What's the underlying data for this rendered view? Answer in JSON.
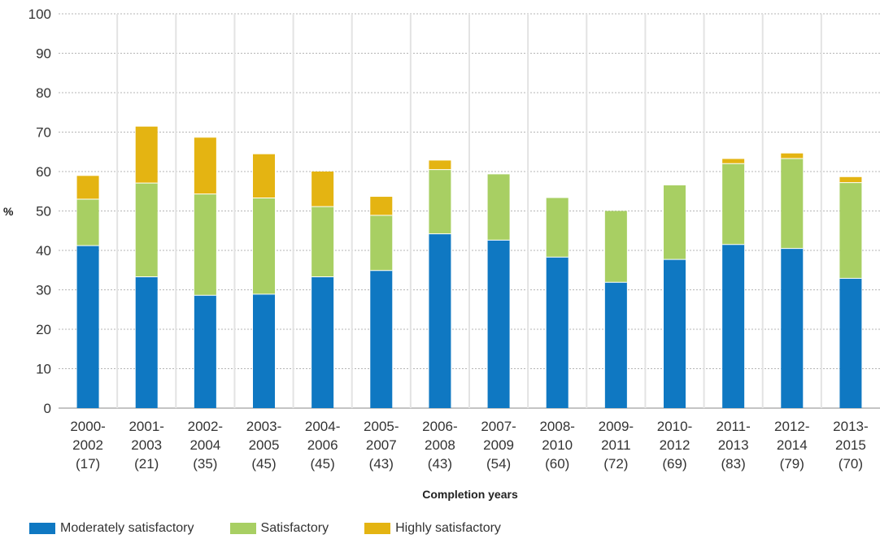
{
  "chart_data": {
    "type": "bar",
    "stacked": true,
    "ylabel": "%",
    "xlabel": "Completion years",
    "ylim": [
      0,
      100
    ],
    "yticks": [
      0,
      10,
      20,
      30,
      40,
      50,
      60,
      70,
      80,
      90,
      100
    ],
    "grid": true,
    "legend_position": "bottom-left",
    "categories": [
      [
        "2000-",
        "2002",
        "(17)"
      ],
      [
        "2001-",
        "2003",
        "(21)"
      ],
      [
        "2002-",
        "2004",
        "(35)"
      ],
      [
        "2003-",
        "2005",
        "(45)"
      ],
      [
        "2004-",
        "2006",
        "(45)"
      ],
      [
        "2005-",
        "2007",
        "(43)"
      ],
      [
        "2006-",
        "2008",
        "(43)"
      ],
      [
        "2007-",
        "2009",
        "(54)"
      ],
      [
        "2008-",
        "2010",
        "(60)"
      ],
      [
        "2009-",
        "2011",
        "(72)"
      ],
      [
        "2010-",
        "2012",
        "(69)"
      ],
      [
        "2011-",
        "2013",
        "(83)"
      ],
      [
        "2012-",
        "2014",
        "(79)"
      ],
      [
        "2013-",
        "2015",
        "(70)"
      ]
    ],
    "series": [
      {
        "name": "Moderately satisfactory",
        "color": "#0f78c2",
        "values": [
          41.2,
          33.3,
          28.6,
          28.9,
          33.3,
          34.9,
          44.2,
          42.6,
          38.3,
          31.9,
          37.7,
          41.5,
          40.5,
          32.9
        ]
      },
      {
        "name": "Satisfactory",
        "color": "#a8cf63",
        "values": [
          11.8,
          23.8,
          25.7,
          24.4,
          17.8,
          14.0,
          16.3,
          16.7,
          15.0,
          18.1,
          18.8,
          20.5,
          22.8,
          24.3
        ]
      },
      {
        "name": "Highly satisfactory",
        "color": "#e4b412",
        "values": [
          5.9,
          14.3,
          14.3,
          11.1,
          8.9,
          4.7,
          2.3,
          0,
          0,
          0,
          0,
          1.2,
          1.3,
          1.4
        ]
      }
    ]
  }
}
